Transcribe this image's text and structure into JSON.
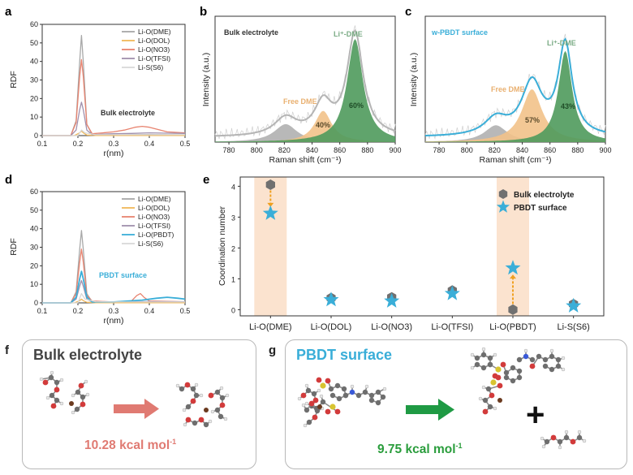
{
  "panels": {
    "a": {
      "letter": "a",
      "annotation": "Bulk electrolyte",
      "chart_data": {
        "type": "line",
        "title": "",
        "xlabel": "r(nm)",
        "ylabel": "RDF",
        "xlim": [
          0.1,
          0.5
        ],
        "ylim": [
          0,
          60
        ],
        "xticks": [
          "0.1",
          "0.2",
          "0.3",
          "0.4",
          "0.5"
        ],
        "yticks": [
          "0",
          "10",
          "20",
          "30",
          "40",
          "50",
          "60"
        ],
        "legend_position": "top-right",
        "series": [
          {
            "name": "Li-O(DME)",
            "color": "#a8a8a8",
            "x": [
              0.1,
              0.18,
              0.195,
              0.205,
              0.21,
              0.215,
              0.225,
              0.24,
              0.27,
              0.3,
              0.35,
              0.4,
              0.45,
              0.5
            ],
            "y": [
              0,
              0,
              8,
              40,
              54,
              40,
              6,
              0.5,
              0.2,
              0.3,
              0.5,
              0.6,
              0.5,
              0.4
            ]
          },
          {
            "name": "Li-O(DOL)",
            "color": "#f0b85a",
            "x": [
              0.1,
              0.19,
              0.205,
              0.21,
              0.215,
              0.225,
              0.25,
              0.3,
              0.4,
              0.5
            ],
            "y": [
              0,
              0,
              1.5,
              2.5,
              1.5,
              0.3,
              0.1,
              0.1,
              0.1,
              0.1
            ]
          },
          {
            "name": "Li-O(NO3)",
            "color": "#e8836f",
            "x": [
              0.1,
              0.18,
              0.195,
              0.205,
              0.21,
              0.215,
              0.225,
              0.24,
              0.27,
              0.3,
              0.33,
              0.36,
              0.38,
              0.4,
              0.42,
              0.45,
              0.5
            ],
            "y": [
              0,
              0,
              7,
              32,
              41,
              32,
              6,
              1,
              1.5,
              2,
              3,
              4.5,
              5,
              4.5,
              3.5,
              2,
              1.5
            ]
          },
          {
            "name": "Li-O(TFSI)",
            "color": "#a090ad",
            "x": [
              0.1,
              0.18,
              0.195,
              0.205,
              0.21,
              0.215,
              0.225,
              0.24,
              0.27,
              0.3,
              0.35,
              0.4,
              0.45,
              0.5
            ],
            "y": [
              0,
              0,
              3,
              14,
              18,
              14,
              3,
              0.5,
              0.8,
              1,
              1.2,
              1.5,
              1.3,
              1.2
            ]
          },
          {
            "name": "Li-S(S6)",
            "color": "#d8d8d8",
            "x": [
              0.1,
              0.2,
              0.21,
              0.22,
              0.25,
              0.3,
              0.4,
              0.5
            ],
            "y": [
              0,
              0,
              3,
              1.5,
              0.5,
              0.5,
              0.5,
              0.5
            ]
          }
        ]
      }
    },
    "b": {
      "letter": "b",
      "annotation": "Bulk electrolyte",
      "label_free": "Free DME",
      "label_li_dme": "Li⁺-DME",
      "chart_data": {
        "type": "area",
        "title": "",
        "xlabel": "Raman shift (cm⁻¹)",
        "ylabel": "Intensity (a.u.)",
        "xlim": [
          770,
          900
        ],
        "ylim": [
          0,
          1.05
        ],
        "xticks": [
          "780",
          "800",
          "820",
          "840",
          "860",
          "880",
          "900"
        ],
        "components": [
          {
            "name": "background",
            "color": "#a0a0a0",
            "center": 821,
            "width": 10,
            "height": 0.15
          },
          {
            "name": "Free DME",
            "color": "#f2c28a",
            "center": 848,
            "width": 7.5,
            "height": 0.26,
            "percent": "40%"
          },
          {
            "name": "Li⁺-DME",
            "color": "#4f9a5c",
            "center": 871,
            "width": 7,
            "height": 0.86,
            "percent": "60%"
          }
        ],
        "envelope_color": "#b5b5b5"
      }
    },
    "c": {
      "letter": "c",
      "annotation": "w-PBDT surface",
      "label_free": "Free DME",
      "label_li_dme": "Li⁺-DME",
      "chart_data": {
        "type": "area",
        "title": "",
        "xlabel": "Raman shift (cm⁻¹)",
        "ylabel": "Intensity (a.u.)",
        "xlim": [
          770,
          900
        ],
        "ylim": [
          0,
          1.05
        ],
        "xticks": [
          "780",
          "800",
          "820",
          "840",
          "860",
          "880",
          "900"
        ],
        "components": [
          {
            "name": "background",
            "color": "#a0a0a0",
            "center": 821,
            "width": 10,
            "height": 0.14
          },
          {
            "name": "Free DME",
            "color": "#f2c28a",
            "center": 847,
            "width": 9,
            "height": 0.44,
            "percent": "57%"
          },
          {
            "name": "Li⁺-DME",
            "color": "#4f9a5c",
            "center": 871,
            "width": 6,
            "height": 0.76,
            "percent": "43%"
          }
        ],
        "envelope_color": "#3aaed8"
      }
    },
    "d": {
      "letter": "d",
      "annotation": "PBDT surface",
      "chart_data": {
        "type": "line",
        "title": "",
        "xlabel": "r(nm)",
        "ylabel": "RDF",
        "xlim": [
          0.1,
          0.5
        ],
        "ylim": [
          0,
          60
        ],
        "xticks": [
          "0.1",
          "0.2",
          "0.3",
          "0.4",
          "0.5"
        ],
        "yticks": [
          "0",
          "10",
          "20",
          "30",
          "40",
          "50",
          "60"
        ],
        "legend_position": "top-right",
        "series": [
          {
            "name": "Li-O(DME)",
            "color": "#a8a8a8",
            "x": [
              0.1,
              0.18,
              0.195,
              0.205,
              0.21,
              0.215,
              0.225,
              0.24,
              0.27,
              0.3,
              0.35,
              0.4,
              0.45,
              0.5
            ],
            "y": [
              0,
              0,
              6,
              29,
              39,
              29,
              5,
              0.5,
              0.3,
              0.4,
              0.5,
              0.6,
              0.5,
              0.4
            ]
          },
          {
            "name": "Li-O(DOL)",
            "color": "#f0b85a",
            "x": [
              0.1,
              0.19,
              0.205,
              0.21,
              0.215,
              0.225,
              0.25,
              0.3,
              0.4,
              0.5
            ],
            "y": [
              0,
              0,
              1.2,
              2,
              1.2,
              0.3,
              0.1,
              0.1,
              0.1,
              0.1
            ]
          },
          {
            "name": "Li-O(NO3)",
            "color": "#e8836f",
            "x": [
              0.1,
              0.18,
              0.195,
              0.205,
              0.21,
              0.215,
              0.225,
              0.24,
              0.3,
              0.35,
              0.365,
              0.375,
              0.385,
              0.4,
              0.45,
              0.5
            ],
            "y": [
              0,
              0,
              5,
              22,
              29,
              22,
              4,
              1,
              0.5,
              1,
              4,
              5,
              3,
              1,
              0.8,
              0.6
            ]
          },
          {
            "name": "Li-O(TFSI)",
            "color": "#a090ad",
            "x": [
              0.1,
              0.18,
              0.195,
              0.205,
              0.21,
              0.215,
              0.225,
              0.24,
              0.3,
              0.4,
              0.5
            ],
            "y": [
              0,
              0,
              2,
              9,
              12,
              9,
              2,
              0.5,
              0.5,
              0.7,
              0.6
            ]
          },
          {
            "name": "Li-O(PBDT)",
            "color": "#3aaed8",
            "x": [
              0.1,
              0.18,
              0.195,
              0.205,
              0.21,
              0.215,
              0.225,
              0.24,
              0.3,
              0.38,
              0.42,
              0.45,
              0.48,
              0.5
            ],
            "y": [
              0,
              0,
              3,
              13,
              17,
              13,
              3,
              0.5,
              0.5,
              1.5,
              2.5,
              3,
              2.5,
              2
            ]
          },
          {
            "name": "Li-S(S6)",
            "color": "#d8d8d8",
            "x": [
              0.1,
              0.2,
              0.21,
              0.22,
              0.25,
              0.3,
              0.4,
              0.5
            ],
            "y": [
              0,
              0,
              5,
              2,
              0.6,
              0.5,
              0.5,
              0.5
            ]
          }
        ]
      }
    },
    "e": {
      "letter": "e",
      "chart_data": {
        "type": "scatter",
        "title": "",
        "xlabel": "",
        "ylabel": "Coordination number",
        "ylim": [
          -0.2,
          4.3
        ],
        "yticks": [
          "0",
          "1",
          "2",
          "3",
          "4"
        ],
        "categories": [
          "Li-O(DME)",
          "Li-O(DOL)",
          "Li-O(NO3)",
          "Li-O(TFSI)",
          "Li-O(PBDT)",
          "Li-S(S6)"
        ],
        "highlighted_categories": [
          "Li-O(DME)",
          "Li-O(PBDT)"
        ],
        "legend_position": "top-right",
        "series": [
          {
            "name": "Bulk electrolyte",
            "marker": "hexagon",
            "color": "#707070",
            "values": [
              4.05,
              0.38,
              0.4,
              0.62,
              0.0,
              0.18
            ]
          },
          {
            "name": "PBDT surface",
            "marker": "star",
            "color": "#3aaed8",
            "values": [
              3.12,
              0.32,
              0.28,
              0.52,
              1.35,
              0.12
            ]
          }
        ]
      }
    },
    "f": {
      "letter": "f",
      "title": "Bulk electrolyte",
      "energy_value": "10.28 kcal mol",
      "energy_exp": "-1",
      "title_color": "#444444",
      "energy_color": "#e07a72",
      "arrow_color": "#e07a72"
    },
    "g": {
      "letter": "g",
      "title": "PBDT surface",
      "energy_value": "9.75 kcal mol",
      "energy_exp": "-1",
      "plus_sign": "+",
      "title_color": "#3aaed8",
      "energy_color": "#2a9d3c",
      "arrow_color": "#1f9a44"
    }
  }
}
